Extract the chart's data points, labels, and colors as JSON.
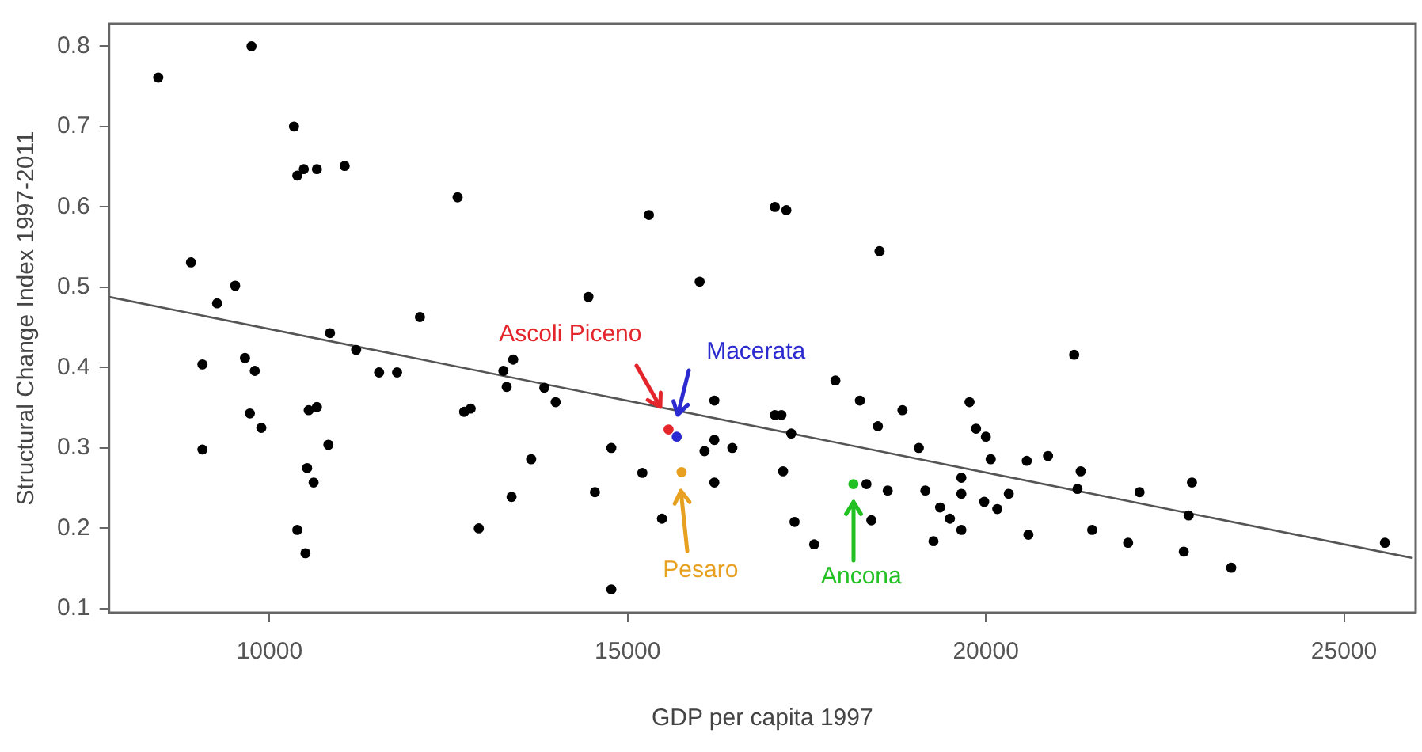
{
  "chart_data": {
    "type": "scatter",
    "xlabel": "GDP per capita 1997",
    "ylabel": "Structural Change Index 1997-2011",
    "xlim": [
      7760,
      26000
    ],
    "xticks": [
      10000,
      15000,
      20000,
      25000
    ],
    "ylim": [
      0.095,
      0.828
    ],
    "yticks": [
      0.1,
      0.2,
      0.3,
      0.4,
      0.5,
      0.6,
      0.7,
      0.8
    ],
    "grid": false,
    "legend": false,
    "marker": "circle",
    "series": [
      {
        "color": "#000000",
        "x": [
          8447,
          9749,
          10342,
          10388,
          10479,
          10662,
          11050,
          8904,
          9521,
          9269,
          12100,
          10845,
          11210,
          9064,
          9658,
          9795,
          11530,
          11781,
          9726,
          9886,
          9064,
          10548,
          10662,
          10822,
          10525,
          10616,
          10388,
          10502,
          12626,
          15297,
          17055,
          17215,
          18516,
          16005,
          14452,
          13402,
          13265,
          17900,
          13311,
          13836,
          13995,
          12717,
          12808,
          16210,
          17055,
          17146,
          17283,
          16210,
          16073,
          16461,
          14772,
          13653,
          15205,
          17169,
          16210,
          14543,
          13379,
          15479,
          12922,
          17329,
          17603,
          14772,
          18242,
          18493,
          18836,
          19064,
          18333,
          18630,
          19155,
          18402,
          21233,
          19772,
          19863,
          20000,
          20068,
          20571,
          20868,
          19658,
          19658,
          19361,
          19498,
          19658,
          19269,
          19977,
          20160,
          20320,
          20594,
          21324,
          21279,
          21484,
          22146,
          21986,
          22877,
          22831,
          22763,
          23425,
          25571
        ],
        "values": [
          0.761,
          0.8,
          0.7,
          0.639,
          0.647,
          0.647,
          0.651,
          0.531,
          0.502,
          0.48,
          0.463,
          0.443,
          0.422,
          0.404,
          0.412,
          0.396,
          0.394,
          0.394,
          0.343,
          0.325,
          0.298,
          0.347,
          0.351,
          0.304,
          0.275,
          0.257,
          0.198,
          0.169,
          0.612,
          0.59,
          0.6,
          0.596,
          0.545,
          0.507,
          0.488,
          0.41,
          0.396,
          0.384,
          0.376,
          0.375,
          0.357,
          0.345,
          0.349,
          0.359,
          0.341,
          0.341,
          0.318,
          0.31,
          0.296,
          0.3,
          0.3,
          0.286,
          0.269,
          0.271,
          0.257,
          0.245,
          0.239,
          0.212,
          0.2,
          0.208,
          0.18,
          0.124,
          0.359,
          0.327,
          0.347,
          0.3,
          0.255,
          0.247,
          0.247,
          0.21,
          0.416,
          0.357,
          0.324,
          0.314,
          0.286,
          0.284,
          0.29,
          0.263,
          0.243,
          0.226,
          0.212,
          0.198,
          0.184,
          0.233,
          0.224,
          0.243,
          0.192,
          0.271,
          0.249,
          0.198,
          0.245,
          0.182,
          0.257,
          0.216,
          0.171,
          0.151,
          0.182
        ]
      },
      {
        "name": "Ascoli Piceno",
        "color": "#e3262b",
        "x": [
          15571
        ],
        "values": [
          0.323
        ]
      },
      {
        "name": "Macerata",
        "color": "#2a2ad0",
        "x": [
          15685
        ],
        "values": [
          0.314
        ]
      },
      {
        "name": "Pesaro",
        "color": "#e8a020",
        "x": [
          15753
        ],
        "values": [
          0.27
        ]
      },
      {
        "name": "Ancona",
        "color": "#22c022",
        "x": [
          18151
        ],
        "values": [
          0.255
        ]
      },
      {
        "type": "line",
        "color": "#555555",
        "marker": "none",
        "x": [
          7763,
          25959
        ],
        "values": [
          0.488,
          0.163
        ]
      }
    ]
  }
}
